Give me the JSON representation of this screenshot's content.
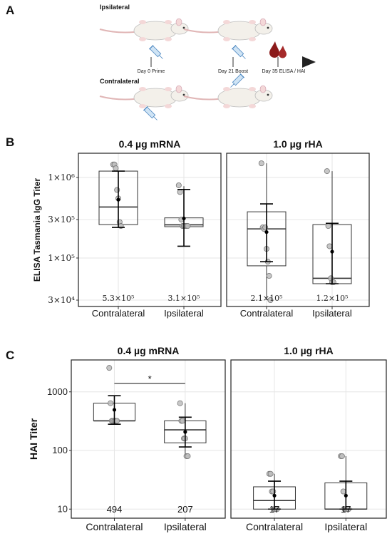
{
  "panel_a": {
    "letter": "A",
    "top_label": "Ipsilateral",
    "bottom_label": "Contralateral",
    "timeline": [
      "Day 0 Prime",
      "Day 21 Boost",
      "Day 35 ELISA / HAI"
    ]
  },
  "colors": {
    "box_stroke": "#333333",
    "point_fill": "#bdbdbd",
    "mean": "#000000",
    "grid": "#e6e6e6",
    "blood": "#8b1a1a",
    "syringe": "#5b9bd5"
  },
  "chart_data": [
    {
      "panel": "B",
      "type": "box",
      "y_scale": "log",
      "ylabel": "ELISA Tasmania IgG Titer",
      "ylim": [
        25000,
        2000000
      ],
      "yticks": [
        30000,
        100000,
        300000,
        1000000
      ],
      "ytick_labels": [
        "3×10⁴",
        "1×10⁵",
        "3×10⁵",
        "1×10⁶"
      ],
      "categories": [
        "Contralateral",
        "Ipsilateral"
      ],
      "facets": [
        {
          "title": "0.4 µg mRNA",
          "groups": [
            {
              "category": "Contralateral",
              "q1": 260000,
              "median": 430000,
              "q3": 1200000,
              "wlo": 240000,
              "whi": 1200000,
              "mean": 530000,
              "sd_lo": 240000,
              "sd_hi": 1200000,
              "points": [
                1450000,
                1450000,
                1300000,
                700000,
                550000,
                280000,
                250000
              ],
              "value_label": "5.3×10⁵"
            },
            {
              "category": "Ipsilateral",
              "q1": 245000,
              "median": 258000,
              "q3": 315000,
              "wlo": 230000,
              "whi": 780000,
              "mean": 310000,
              "sd_lo": 140000,
              "sd_hi": 710000,
              "points": [
                800000,
                660000,
                300000,
                250000,
                250000,
                250000,
                250000,
                250000
              ],
              "value_label": "3.1×10⁵"
            }
          ]
        },
        {
          "title": "1.0 µg rHA",
          "groups": [
            {
              "category": "Contralateral",
              "q1": 80000,
              "median": 230000,
              "q3": 375000,
              "wlo": 30000,
              "whi": 1500000,
              "mean": 210000,
              "sd_lo": 90000,
              "sd_hi": 470000,
              "points": [
                1500000,
                240000,
                230000,
                240000,
                130000,
                90000,
                60000,
                30000
              ],
              "value_label": "2.1×10⁵"
            },
            {
              "category": "Ipsilateral",
              "q1": 48000,
              "median": 56000,
              "q3": 260000,
              "wlo": 48000,
              "whi": 1200000,
              "mean": 120000,
              "sd_lo": 48000,
              "sd_hi": 270000,
              "points": [
                1200000,
                250000,
                140000,
                56000,
                50000,
                50000
              ],
              "value_label": "1.2×10⁵"
            }
          ]
        }
      ]
    },
    {
      "panel": "C",
      "type": "box",
      "y_scale": "log",
      "ylabel": "HAI Titer",
      "ylim": [
        7,
        3500
      ],
      "yticks": [
        10,
        100,
        1000
      ],
      "ytick_labels": [
        "10",
        "100",
        "1000"
      ],
      "categories": [
        "Contralateral",
        "Ipsilateral"
      ],
      "annotation": "*",
      "facets": [
        {
          "title": "0.4 µg mRNA",
          "groups": [
            {
              "category": "Contralateral",
              "q1": 320,
              "median": 320,
              "q3": 640,
              "wlo": 300,
              "whi": 860,
              "mean": 494,
              "sd_lo": 280,
              "sd_hi": 860,
              "points": [
                2560,
                640,
                320,
                320,
                320,
                320,
                320
              ],
              "value_label": "494"
            },
            {
              "category": "Ipsilateral",
              "q1": 135,
              "median": 225,
              "q3": 320,
              "wlo": 80,
              "whi": 640,
              "mean": 207,
              "sd_lo": 115,
              "sd_hi": 370,
              "points": [
                640,
                320,
                320,
                160,
                160,
                80,
                80
              ],
              "value_label": "207"
            }
          ]
        },
        {
          "title": "1.0 µg rHA",
          "groups": [
            {
              "category": "Contralateral",
              "q1": 10,
              "median": 14,
              "q3": 24,
              "wlo": 10,
              "whi": 40,
              "mean": 17,
              "sd_lo": 10,
              "sd_hi": 30,
              "points": [
                40,
                40,
                20,
                20,
                10,
                10,
                10
              ],
              "value_label": "17"
            },
            {
              "category": "Ipsilateral",
              "q1": 10,
              "median": 10,
              "q3": 28,
              "wlo": 10,
              "whi": 80,
              "mean": 17,
              "sd_lo": 10,
              "sd_hi": 30,
              "points": [
                80,
                80,
                20,
                10,
                10,
                10,
                10
              ],
              "value_label": "17"
            }
          ]
        }
      ]
    }
  ]
}
